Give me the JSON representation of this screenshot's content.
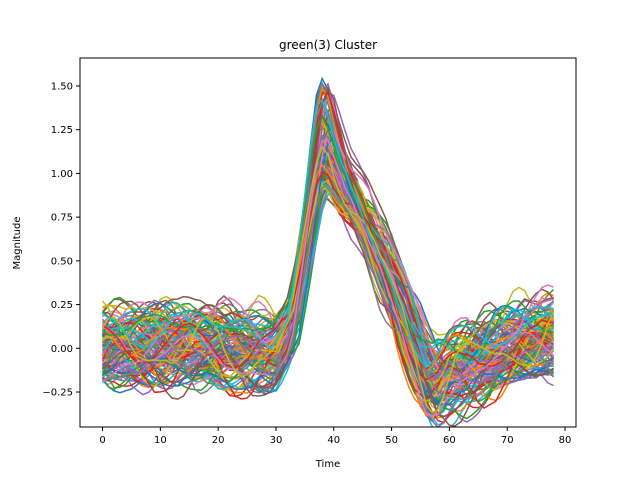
{
  "chart_data": {
    "type": "line",
    "title": "green(3) Cluster",
    "xlabel": "Time",
    "ylabel": "Magnitude",
    "xlim": [
      -3.9,
      81.9
    ],
    "ylim": [
      -0.45,
      1.66
    ],
    "xticks": [
      0,
      10,
      20,
      30,
      40,
      50,
      60,
      70,
      80
    ],
    "yticks": [
      -0.25,
      0.0,
      0.25,
      0.5,
      0.75,
      1.0,
      1.25,
      1.5
    ],
    "ytick_labels": [
      "−0.25",
      "0.00",
      "0.25",
      "0.50",
      "0.75",
      "1.00",
      "1.25",
      "1.50"
    ],
    "grid": false,
    "legend": "none",
    "x_range": [
      0,
      78
    ],
    "series_count": 120,
    "colors": [
      "#1f77b4",
      "#ff7f0e",
      "#2ca02c",
      "#d62728",
      "#9467bd",
      "#8c564b",
      "#e377c2",
      "#7f7f7f",
      "#bcbd22",
      "#17becf"
    ],
    "template": {
      "x": [
        0,
        10,
        20,
        25,
        30,
        33,
        35,
        37,
        38,
        39,
        40,
        42,
        45,
        48,
        50,
        53,
        56,
        58,
        60,
        65,
        70,
        75,
        78
      ],
      "y": [
        0.0,
        0.02,
        0.0,
        -0.02,
        -0.02,
        0.15,
        0.55,
        1.05,
        1.22,
        1.25,
        1.15,
        0.95,
        0.75,
        0.5,
        0.35,
        0.1,
        -0.15,
        -0.2,
        -0.15,
        -0.08,
        0.0,
        0.05,
        0.08
      ]
    }
  }
}
